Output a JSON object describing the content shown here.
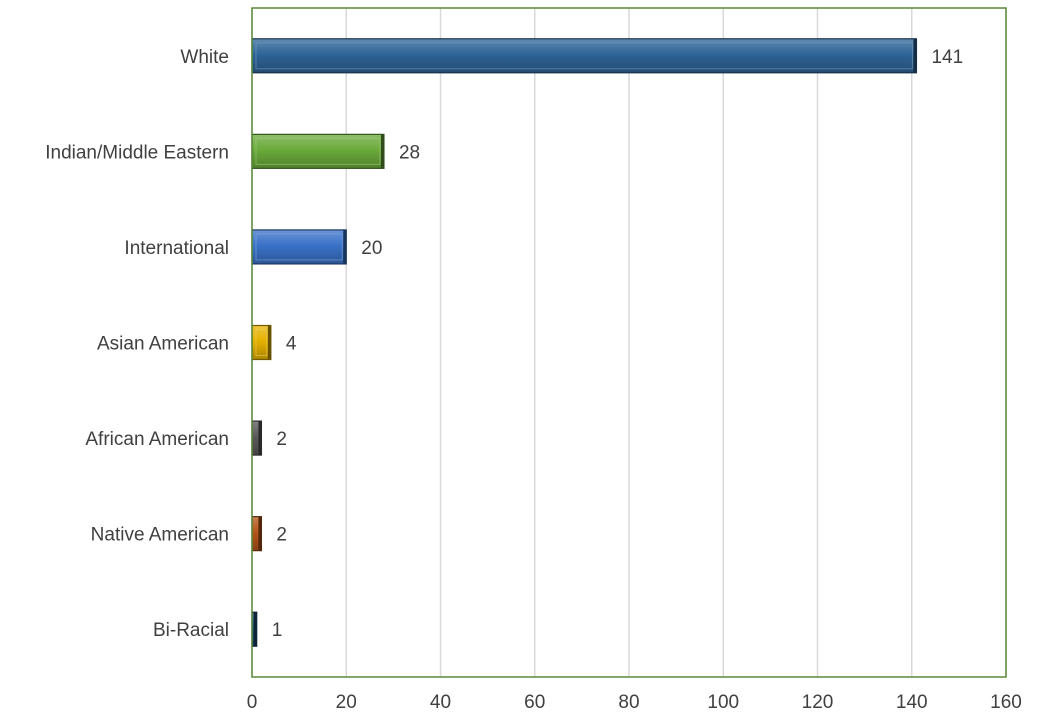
{
  "chart_data": {
    "type": "bar",
    "orientation": "horizontal",
    "title": "",
    "xlabel": "",
    "ylabel": "",
    "categories": [
      "White",
      "Indian/Middle Eastern",
      "International",
      "Asian American",
      "African American",
      "Native American",
      "Bi-Racial"
    ],
    "values": [
      141,
      28,
      20,
      4,
      2,
      2,
      1
    ],
    "data_labels": [
      "141",
      "28",
      "20",
      "4",
      "2",
      "2",
      "1"
    ],
    "bar_colors": [
      "#2e6497",
      "#6aaa3a",
      "#3a72c8",
      "#e6b100",
      "#5a5a5a",
      "#b5561a",
      "#1f4e79"
    ],
    "xlim": [
      0,
      160
    ],
    "x_ticks": [
      0,
      20,
      40,
      60,
      80,
      100,
      120,
      140,
      160
    ],
    "x_tick_labels": [
      "0",
      "20",
      "40",
      "60",
      "80",
      "100",
      "120",
      "140",
      "160"
    ],
    "grid": "vertical",
    "legend": "none",
    "frame_color": "#5a8a3a",
    "gridline_color": "#d9d9d9",
    "text_color": "#404040"
  }
}
